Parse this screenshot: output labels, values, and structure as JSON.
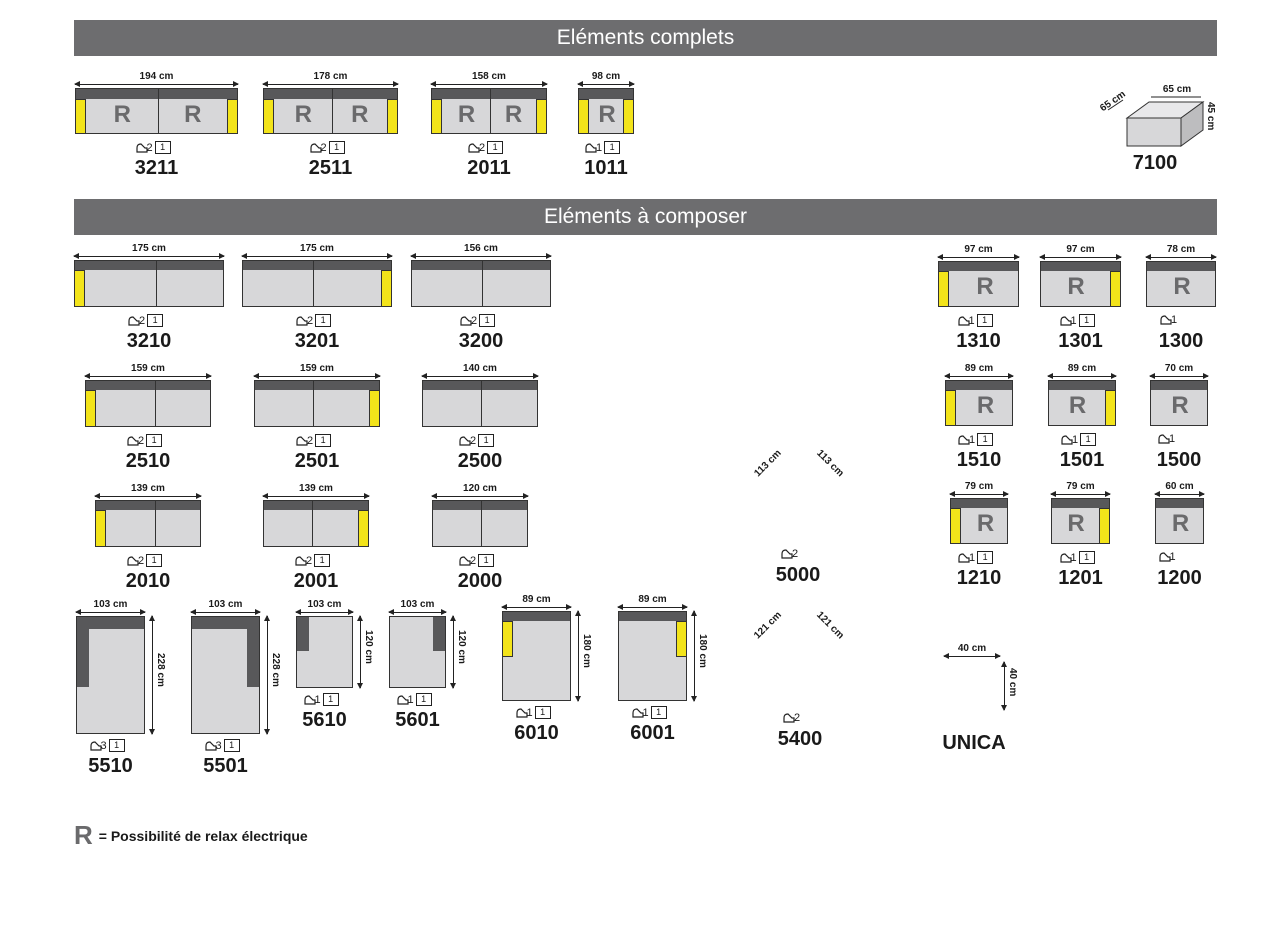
{
  "sections": {
    "complete": "Eléments complets",
    "compose": "Eléments à composer"
  },
  "legend": {
    "symbol": "R",
    "text": "= Possibilité de relax électrique"
  },
  "complete_items": [
    {
      "code": "3211",
      "width": "194 cm",
      "seats": "2",
      "boxes": "1"
    },
    {
      "code": "2511",
      "width": "178 cm",
      "seats": "2",
      "boxes": "1"
    },
    {
      "code": "2011",
      "width": "158 cm",
      "seats": "2",
      "boxes": "1"
    },
    {
      "code": "1011",
      "width": "98 cm",
      "seats": "1",
      "boxes": "1"
    }
  ],
  "pouf": {
    "code": "7100",
    "width": "65 cm",
    "depth": "65 cm",
    "height": "45 cm"
  },
  "compose_items": [
    {
      "code": "3210",
      "width": "175 cm",
      "seats": "2",
      "boxes": "1"
    },
    {
      "code": "3201",
      "width": "175 cm",
      "seats": "2",
      "boxes": "1"
    },
    {
      "code": "3200",
      "width": "156 cm",
      "seats": "2",
      "boxes": "1"
    },
    {
      "code": "2510",
      "width": "159 cm",
      "seats": "2",
      "boxes": "1"
    },
    {
      "code": "2501",
      "width": "159 cm",
      "seats": "2",
      "boxes": "1"
    },
    {
      "code": "2500",
      "width": "140 cm",
      "seats": "2",
      "boxes": "1"
    },
    {
      "code": "2010",
      "width": "139 cm",
      "seats": "2",
      "boxes": "1"
    },
    {
      "code": "2001",
      "width": "139 cm",
      "seats": "2",
      "boxes": "1"
    },
    {
      "code": "2000",
      "width": "120 cm",
      "seats": "2",
      "boxes": "1"
    },
    {
      "code": "5510",
      "width": "103 cm",
      "length": "228 cm",
      "seats": "3",
      "boxes": "1"
    },
    {
      "code": "5501",
      "width": "103 cm",
      "length": "228 cm",
      "seats": "3",
      "boxes": "1"
    },
    {
      "code": "5610",
      "width": "103 cm",
      "length": "120 cm",
      "seats": "1",
      "boxes": "1"
    },
    {
      "code": "5601",
      "width": "103 cm",
      "length": "120 cm",
      "seats": "1",
      "boxes": "1"
    },
    {
      "code": "6010",
      "width": "89 cm",
      "length": "180 cm",
      "seats": "1",
      "boxes": "1"
    },
    {
      "code": "6001",
      "width": "89 cm",
      "length": "180 cm",
      "seats": "1",
      "boxes": "1"
    },
    {
      "code": "5000",
      "side_a": "113 cm",
      "side_b": "113 cm",
      "seats": "2"
    },
    {
      "code": "5400",
      "side_a": "121 cm",
      "side_b": "121 cm",
      "seats": "2"
    },
    {
      "code": "1310",
      "width": "97 cm",
      "seats": "1",
      "boxes": "1"
    },
    {
      "code": "1301",
      "width": "97 cm",
      "seats": "1",
      "boxes": "1"
    },
    {
      "code": "1300",
      "width": "78 cm",
      "seats": "1"
    },
    {
      "code": "1510",
      "width": "89 cm",
      "seats": "1",
      "boxes": "1"
    },
    {
      "code": "1501",
      "width": "89 cm",
      "seats": "1",
      "boxes": "1"
    },
    {
      "code": "1500",
      "width": "70 cm",
      "seats": "1"
    },
    {
      "code": "1210",
      "width": "79 cm",
      "seats": "1",
      "boxes": "1"
    },
    {
      "code": "1201",
      "width": "79 cm",
      "seats": "1",
      "boxes": "1"
    },
    {
      "code": "1200",
      "width": "60 cm",
      "seats": "1"
    },
    {
      "code": "UNICA",
      "width": "40 cm",
      "depth": "40 cm"
    }
  ],
  "colors": {
    "banner": "#6d6d6f",
    "seat": "#d7d7d9",
    "back": "#58585a",
    "arm": "#f3e41a"
  }
}
